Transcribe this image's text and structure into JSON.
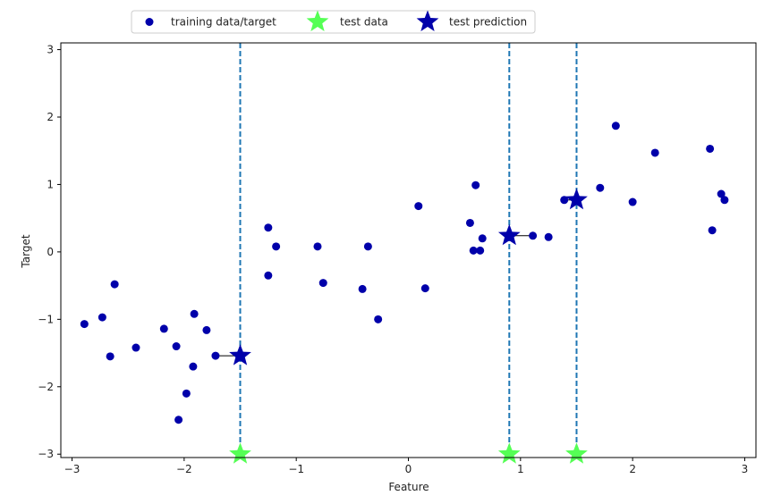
{
  "chart_data": {
    "type": "scatter",
    "xlabel": "Feature",
    "ylabel": "Target",
    "xlim": [
      -3.1,
      3.1
    ],
    "ylim": [
      -3.05,
      3.1
    ],
    "x_ticks": [
      -3,
      -2,
      -1,
      0,
      1,
      2,
      3
    ],
    "x_tick_labels": [
      "−3",
      "−2",
      "−1",
      "0",
      "1",
      "2",
      "3"
    ],
    "y_ticks": [
      -3,
      -2,
      -1,
      0,
      1,
      2,
      3
    ],
    "y_tick_labels": [
      "−3",
      "−2",
      "−1",
      "0",
      "1",
      "2",
      "3"
    ],
    "grid": false,
    "legend_position": "top",
    "series": [
      {
        "name": "training data/target",
        "marker": "circle",
        "color": "#0000aa",
        "points": [
          [
            -2.89,
            -1.07
          ],
          [
            -2.73,
            -0.97
          ],
          [
            -2.66,
            -1.55
          ],
          [
            -2.62,
            -0.48
          ],
          [
            -2.43,
            -1.42
          ],
          [
            -2.18,
            -1.14
          ],
          [
            -2.07,
            -1.4
          ],
          [
            -2.05,
            -2.49
          ],
          [
            -1.98,
            -2.1
          ],
          [
            -1.92,
            -1.7
          ],
          [
            -1.91,
            -0.92
          ],
          [
            -1.8,
            -1.16
          ],
          [
            -1.72,
            -1.54
          ],
          [
            -1.25,
            0.36
          ],
          [
            -1.25,
            -0.35
          ],
          [
            -1.18,
            0.08
          ],
          [
            -0.81,
            0.08
          ],
          [
            -0.76,
            -0.46
          ],
          [
            -0.41,
            -0.55
          ],
          [
            -0.36,
            0.08
          ],
          [
            -0.27,
            -1.0
          ],
          [
            0.09,
            0.68
          ],
          [
            0.15,
            -0.54
          ],
          [
            0.55,
            0.43
          ],
          [
            0.58,
            0.02
          ],
          [
            0.6,
            0.99
          ],
          [
            0.64,
            0.02
          ],
          [
            0.66,
            0.2
          ],
          [
            1.11,
            0.24
          ],
          [
            1.25,
            0.22
          ],
          [
            1.39,
            0.77
          ],
          [
            1.71,
            0.95
          ],
          [
            1.85,
            1.87
          ],
          [
            2.0,
            0.74
          ],
          [
            2.2,
            1.47
          ],
          [
            2.69,
            1.53
          ],
          [
            2.71,
            0.32
          ],
          [
            2.79,
            0.86
          ],
          [
            2.82,
            0.77
          ]
        ]
      },
      {
        "name": "test data",
        "marker": "star",
        "color": "#55ff55",
        "points": [
          [
            -1.5,
            -3.0
          ],
          [
            0.9,
            -3.0
          ],
          [
            1.5,
            -3.0
          ]
        ]
      },
      {
        "name": "test prediction",
        "marker": "star",
        "color": "#0000aa",
        "points": [
          [
            -1.5,
            -1.54
          ],
          [
            0.9,
            0.24
          ],
          [
            1.5,
            0.77
          ]
        ]
      }
    ],
    "vertical_lines": [
      -1.5,
      0.9,
      1.5
    ],
    "vertical_line_color": "#1f77b4",
    "neighbor_links": [
      {
        "from": [
          -1.5,
          -1.54
        ],
        "to": [
          -1.72,
          -1.54
        ]
      },
      {
        "from": [
          0.9,
          0.24
        ],
        "to": [
          1.11,
          0.24
        ]
      },
      {
        "from": [
          1.5,
          0.77
        ],
        "to": [
          1.39,
          0.77
        ]
      }
    ]
  }
}
